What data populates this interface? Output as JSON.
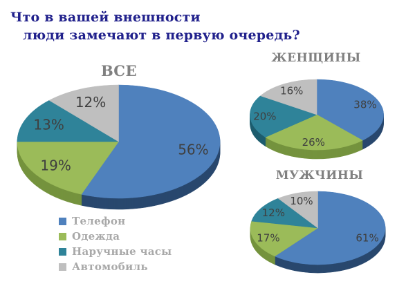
{
  "title": {
    "line1": "Что в вашей внешности",
    "line2": "люди замечают в первую очередь?"
  },
  "colors": {
    "background": "#ffffff",
    "title_text": "#21218c",
    "heading_text": "#808080",
    "percent_label_text": "#3f3f3f",
    "legend_text": "#a9a9a9"
  },
  "chart_data": {
    "type": "pie",
    "style": "3d",
    "label_format": "percent",
    "legend_position": "bottom-left",
    "start_angle_deg": 0,
    "direction": "clockwise",
    "categories": [
      "Телефон",
      "Одежда",
      "Наручные часы",
      "Автомобиль"
    ],
    "colors": [
      "#4f81bd",
      "#9bbb59",
      "#2f8399",
      "#bfbfbf"
    ],
    "side_colors": [
      "#29486e",
      "#75933e",
      "#1d5d6e",
      "#8c8c8c"
    ],
    "charts": [
      {
        "title": "ВСЕ",
        "values": [
          56,
          19,
          13,
          12
        ]
      },
      {
        "title": "ЖЕНЩИНЫ",
        "values": [
          38,
          26,
          20,
          16
        ]
      },
      {
        "title": "МУЖЧИНЫ",
        "values": [
          61,
          17,
          12,
          10
        ]
      }
    ]
  }
}
